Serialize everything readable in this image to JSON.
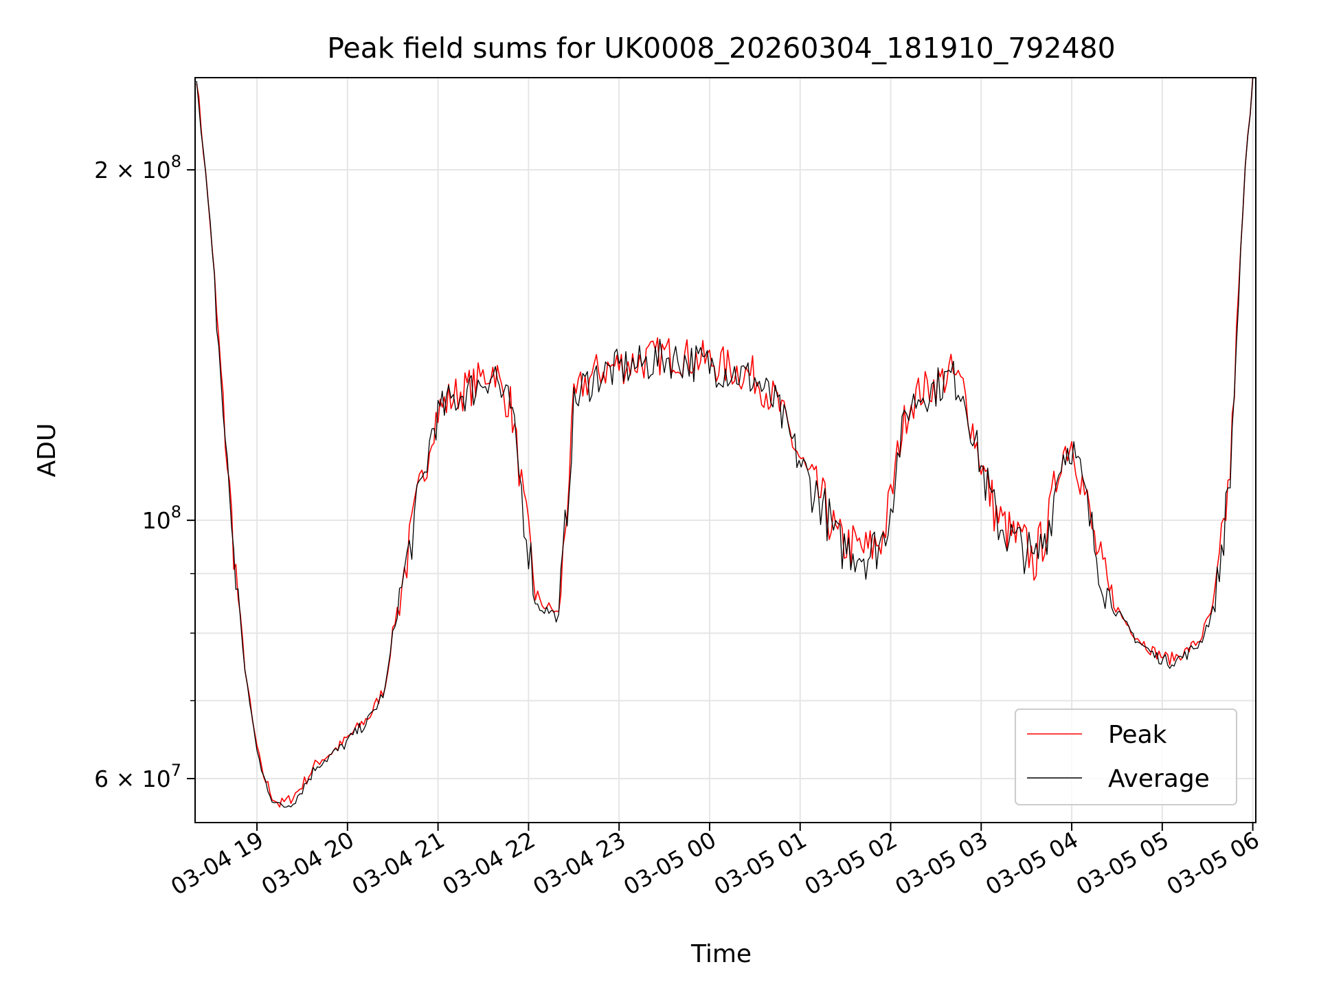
{
  "chart_data": {
    "type": "line",
    "title": "Peak field sums for UK0008_20260304_181910_792480",
    "xlabel": "Time",
    "ylabel": "ADU",
    "y_scale": "log",
    "ylim": [
      55000000,
      240000000
    ],
    "xlim": [
      "2026-03-04 18:19",
      "2026-03-05 06:02"
    ],
    "x_ticks": [
      "03-04 19",
      "03-04 20",
      "03-04 21",
      "03-04 22",
      "03-04 23",
      "03-05 00",
      "03-05 01",
      "03-05 02",
      "03-05 03",
      "03-05 04",
      "03-05 05",
      "03-05 06"
    ],
    "y_ticks": [
      {
        "value": 60000000,
        "base": "6 × 10",
        "exp": "7"
      },
      {
        "value": 100000000,
        "base": "10",
        "exp": "8"
      },
      {
        "value": 200000000,
        "base": "2 × 10",
        "exp": "8"
      }
    ],
    "y_minor_ticks": [
      70000000,
      80000000,
      90000000
    ],
    "grid": true,
    "legend_position": "lower-right",
    "series": [
      {
        "name": "Peak",
        "color": "#ff0000",
        "x": [
          "2026-03-04 18:20",
          "2026-03-04 18:29",
          "2026-03-04 18:39",
          "2026-03-04 18:46",
          "2026-03-04 18:52",
          "2026-03-04 18:57",
          "2026-03-04 19:03",
          "2026-03-04 19:10",
          "2026-03-04 19:15",
          "2026-03-04 19:21",
          "2026-03-04 19:27",
          "2026-03-04 19:33",
          "2026-03-04 19:40",
          "2026-03-04 19:48",
          "2026-03-04 19:55",
          "2026-03-04 20:05",
          "2026-03-04 20:15",
          "2026-03-04 20:25",
          "2026-03-04 20:30",
          "2026-03-04 20:36",
          "2026-03-04 20:41",
          "2026-03-04 20:46",
          "2026-03-04 20:51",
          "2026-03-04 20:56",
          "2026-03-04 21:00",
          "2026-03-04 21:07",
          "2026-03-04 21:15",
          "2026-03-04 21:25",
          "2026-03-04 21:33",
          "2026-03-04 21:38",
          "2026-03-04 21:42",
          "2026-03-04 21:48",
          "2026-03-04 21:52",
          "2026-03-04 21:57",
          "2026-03-04 22:06",
          "2026-03-04 22:15",
          "2026-03-04 22:20",
          "2026-03-04 22:27",
          "2026-03-04 22:30",
          "2026-03-04 22:36",
          "2026-03-04 22:45",
          "2026-03-04 23:00",
          "2026-03-04 23:15",
          "2026-03-04 23:30",
          "2026-03-04 23:45",
          "2026-03-05 00:00",
          "2026-03-05 00:15",
          "2026-03-05 00:30",
          "2026-03-05 00:45",
          "2026-03-05 00:55",
          "2026-03-05 01:05",
          "2026-03-05 01:15",
          "2026-03-05 01:25",
          "2026-03-05 01:35",
          "2026-03-05 01:45",
          "2026-03-05 01:55",
          "2026-03-05 02:00",
          "2026-03-05 02:06",
          "2026-03-05 02:12",
          "2026-03-05 02:20",
          "2026-03-05 02:30",
          "2026-03-05 02:40",
          "2026-03-05 02:48",
          "2026-03-05 02:53",
          "2026-03-05 03:00",
          "2026-03-05 03:10",
          "2026-03-05 03:20",
          "2026-03-05 03:30",
          "2026-03-05 03:35",
          "2026-03-05 03:45",
          "2026-03-05 03:53",
          "2026-03-05 04:00",
          "2026-03-05 04:07",
          "2026-03-05 04:15",
          "2026-03-05 04:25",
          "2026-03-05 04:35",
          "2026-03-05 04:45",
          "2026-03-05 04:55",
          "2026-03-05 05:05",
          "2026-03-05 05:15",
          "2026-03-05 05:25",
          "2026-03-05 05:35",
          "2026-03-05 05:45",
          "2026-03-05 05:52",
          "2026-03-05 05:55",
          "2026-03-05 06:00"
        ],
        "y": [
          240000000,
          180000000,
          118000000,
          90000000,
          75000000,
          67000000,
          61000000,
          58000000,
          57000000,
          57500000,
          58500000,
          60000000,
          62000000,
          63000000,
          64000000,
          66000000,
          68000000,
          72000000,
          80000000,
          88000000,
          95000000,
          103000000,
          110000000,
          120000000,
          124000000,
          127000000,
          129000000,
          131000000,
          134000000,
          135000000,
          129000000,
          126000000,
          116000000,
          102000000,
          85000000,
          84000000,
          83000000,
          110000000,
          126000000,
          131000000,
          134000000,
          136000000,
          137000000,
          139000000,
          138000000,
          137000000,
          135000000,
          133000000,
          126000000,
          117000000,
          109000000,
          104000000,
          96000000,
          95000000,
          94000000,
          97000000,
          104000000,
          117000000,
          126000000,
          129000000,
          131000000,
          134000000,
          130000000,
          122000000,
          112000000,
          101000000,
          97000000,
          95000000,
          92000000,
          100000000,
          114000000,
          117000000,
          108000000,
          96000000,
          86000000,
          82000000,
          79000000,
          77000000,
          76000000,
          77000000,
          79000000,
          85000000,
          110000000,
          170000000,
          200000000,
          240000000
        ]
      },
      {
        "name": "Average",
        "color": "#000000",
        "x": [
          "2026-03-04 18:20",
          "2026-03-04 18:29",
          "2026-03-04 18:39",
          "2026-03-04 18:46",
          "2026-03-04 18:52",
          "2026-03-04 18:57",
          "2026-03-04 19:03",
          "2026-03-04 19:10",
          "2026-03-04 19:15",
          "2026-03-04 19:21",
          "2026-03-04 19:27",
          "2026-03-04 19:33",
          "2026-03-04 19:40",
          "2026-03-04 19:48",
          "2026-03-04 19:55",
          "2026-03-04 20:05",
          "2026-03-04 20:15",
          "2026-03-04 20:25",
          "2026-03-04 20:30",
          "2026-03-04 20:36",
          "2026-03-04 20:41",
          "2026-03-04 20:46",
          "2026-03-04 20:51",
          "2026-03-04 20:56",
          "2026-03-04 21:00",
          "2026-03-04 21:07",
          "2026-03-04 21:15",
          "2026-03-04 21:25",
          "2026-03-04 21:33",
          "2026-03-04 21:38",
          "2026-03-04 21:42",
          "2026-03-04 21:48",
          "2026-03-04 21:52",
          "2026-03-04 21:57",
          "2026-03-04 22:06",
          "2026-03-04 22:15",
          "2026-03-04 22:20",
          "2026-03-04 22:27",
          "2026-03-04 22:30",
          "2026-03-04 22:36",
          "2026-03-04 22:45",
          "2026-03-04 23:00",
          "2026-03-04 23:15",
          "2026-03-04 23:30",
          "2026-03-04 23:45",
          "2026-03-05 00:00",
          "2026-03-05 00:15",
          "2026-03-05 00:30",
          "2026-03-05 00:45",
          "2026-03-05 00:55",
          "2026-03-05 01:05",
          "2026-03-05 01:15",
          "2026-03-05 01:25",
          "2026-03-05 01:35",
          "2026-03-05 01:45",
          "2026-03-05 01:55",
          "2026-03-05 02:00",
          "2026-03-05 02:06",
          "2026-03-05 02:12",
          "2026-03-05 02:20",
          "2026-03-05 02:30",
          "2026-03-05 02:40",
          "2026-03-05 02:48",
          "2026-03-05 02:53",
          "2026-03-05 03:00",
          "2026-03-05 03:10",
          "2026-03-05 03:20",
          "2026-03-05 03:30",
          "2026-03-05 03:35",
          "2026-03-05 03:45",
          "2026-03-05 03:53",
          "2026-03-05 04:00",
          "2026-03-05 04:07",
          "2026-03-05 04:15",
          "2026-03-05 04:25",
          "2026-03-05 04:35",
          "2026-03-05 04:45",
          "2026-03-05 04:55",
          "2026-03-05 05:05",
          "2026-03-05 05:15",
          "2026-03-05 05:25",
          "2026-03-05 05:35",
          "2026-03-05 05:45",
          "2026-03-05 05:52",
          "2026-03-05 05:55",
          "2026-03-05 06:00"
        ],
        "y": [
          240000000,
          179000000,
          117000000,
          89500000,
          74800000,
          66800000,
          60800000,
          57800000,
          56700000,
          57000000,
          58000000,
          59600000,
          61700000,
          62700000,
          63600000,
          65600000,
          67600000,
          71500000,
          79500000,
          87500000,
          94400000,
          102300000,
          109300000,
          119200000,
          123200000,
          126200000,
          128200000,
          130200000,
          133100000,
          134100000,
          128200000,
          125200000,
          115200000,
          101300000,
          84400000,
          83400000,
          82400000,
          109300000,
          125200000,
          130200000,
          133100000,
          135100000,
          136100000,
          138000000,
          137100000,
          136100000,
          134100000,
          132100000,
          125200000,
          116200000,
          108300000,
          103300000,
          95400000,
          94400000,
          93400000,
          96400000,
          103300000,
          116200000,
          125200000,
          128200000,
          130200000,
          133100000,
          129200000,
          121200000,
          111300000,
          100300000,
          96400000,
          94400000,
          91400000,
          99400000,
          113300000,
          116200000,
          107300000,
          95400000,
          85400000,
          81400000,
          78500000,
          76500000,
          75500000,
          76500000,
          78500000,
          84400000,
          109300000,
          169000000,
          199000000,
          240000000
        ]
      }
    ]
  }
}
